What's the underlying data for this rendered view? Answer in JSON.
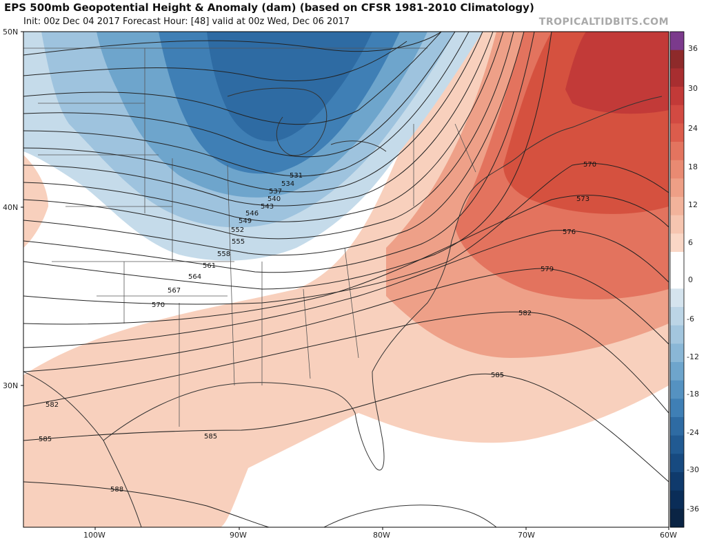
{
  "header": {
    "title": "EPS 500mb Geopotential Height & Anomaly (dam) (based on CFSR 1981-2010 Climatology)",
    "subtitle": "Init: 00z Dec 04 2017   Forecast Hour: [48]   valid at 00z Wed, Dec 06 2017",
    "brand": "TROPICALTIDBITS.COM"
  },
  "axes": {
    "lat_labels": [
      "50N",
      "40N",
      "30N"
    ],
    "lon_labels": [
      "100W",
      "90W",
      "80W",
      "70W",
      "60W"
    ]
  },
  "colorbar": {
    "labels": [
      "36",
      "30",
      "24",
      "18",
      "12",
      "6",
      "0",
      "-6",
      "-12",
      "-18",
      "-24",
      "-30",
      "-36"
    ],
    "colors": [
      "#7b3a8c",
      "#8e2a2a",
      "#a82e30",
      "#c23a38",
      "#d24a42",
      "#dc5c4c",
      "#e3745f",
      "#e98a72",
      "#ee9f86",
      "#f2b39b",
      "#f6c5b0",
      "#fad7c6",
      "#ffffff",
      "#ffffff",
      "#d5e4ee",
      "#bcd5e6",
      "#a3c6de",
      "#8ab7d6",
      "#6ea5cc",
      "#5592c1",
      "#3f7fb5",
      "#2e6ba3",
      "#215a92",
      "#174a80",
      "#0f3a6c",
      "#0a2d58",
      "#0a2444"
    ]
  },
  "contours": {
    "labels": [
      "531",
      "534",
      "537",
      "540",
      "543",
      "546",
      "549",
      "552",
      "555",
      "558",
      "561",
      "564",
      "567",
      "570",
      "570",
      "573",
      "576",
      "579",
      "582",
      "582",
      "585",
      "585",
      "585",
      "588"
    ]
  }
}
